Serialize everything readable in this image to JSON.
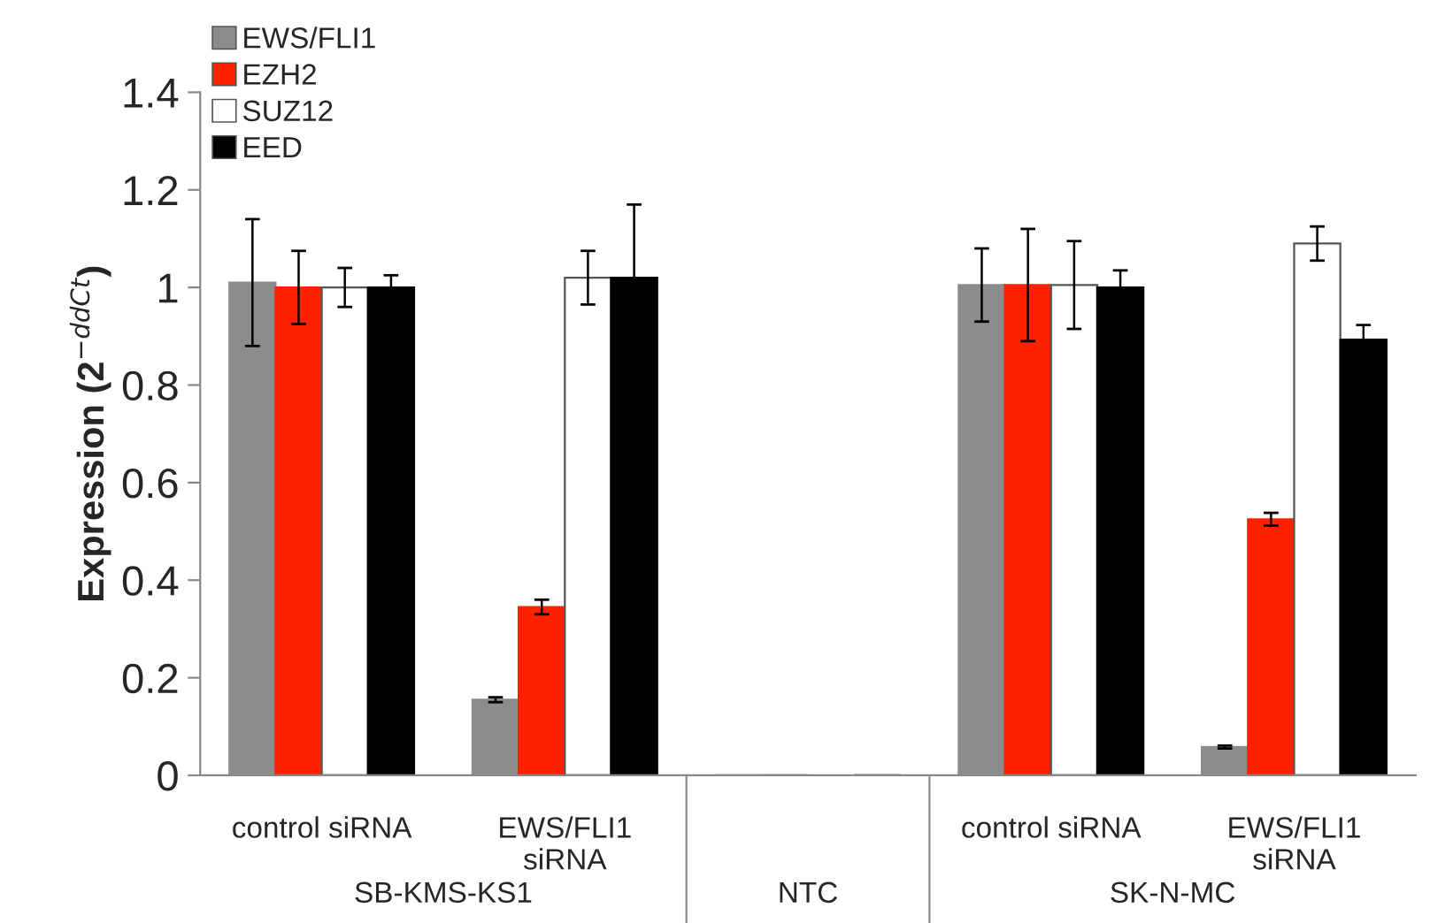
{
  "chart_data": {
    "type": "bar",
    "ylabel": "Expression (2$^{−ddCt}$)",
    "categories": [
      "control siRNA",
      "EWS/FLI1\nsiRNA",
      null,
      "control siRNA",
      "EWS/FLI1\nsiRNA"
    ],
    "series": [
      {
        "name": "EWS/FLI1",
        "color": "#8c8c8c",
        "values": [
          1.01,
          0.155,
          0,
          1.005,
          0.058
        ],
        "errors": [
          0.13,
          0.005,
          null,
          0.075,
          0.003
        ]
      },
      {
        "name": "EZH2",
        "color": "#ff2200",
        "values": [
          1.0,
          0.345,
          0,
          1.005,
          0.525
        ],
        "errors": [
          0.075,
          0.015,
          null,
          0.115,
          0.013
        ]
      },
      {
        "name": "SUZ12",
        "color": "#ffffff",
        "values": [
          1.0,
          1.02,
          0,
          1.005,
          1.09
        ],
        "errors": [
          0.04,
          0.055,
          null,
          0.09,
          0.035
        ]
      },
      {
        "name": "EED",
        "color": "#000000",
        "values": [
          1.0,
          1.02,
          0,
          1.0,
          0.893
        ],
        "errors": [
          0.025,
          0.15,
          null,
          0.035,
          0.03
        ]
      }
    ],
    "annotations": [
      "SB-KMS-KS1",
      "NTC",
      "SK-N-MC"
    ],
    "ylim": [
      0,
      1.4
    ],
    "yticks": [
      0,
      0.2,
      0.4,
      0.6,
      0.8,
      1,
      1.2,
      1.4
    ],
    "grid": false,
    "legend": "top left"
  }
}
